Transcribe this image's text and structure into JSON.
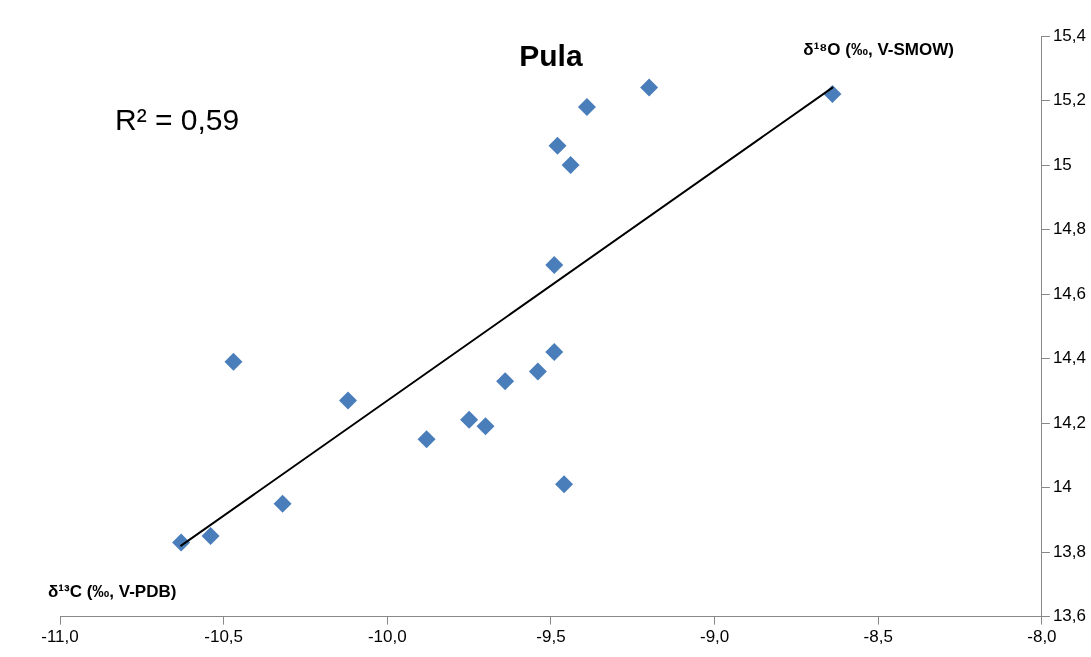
{
  "chart_data": {
    "type": "scatter",
    "title": "Pula",
    "xlabel": "δ¹³C (‰, V-PDB)",
    "ylabel": "δ¹⁸O (‰, V-SMOW)",
    "annotations": [
      "R² = 0,59"
    ],
    "xlim": [
      -11.0,
      -8.0
    ],
    "xticks": [
      {
        "value": -11.0,
        "label": "-11,0"
      },
      {
        "value": -10.5,
        "label": "-10,5"
      },
      {
        "value": -10.0,
        "label": "-10,0"
      },
      {
        "value": -9.5,
        "label": "-9,5"
      },
      {
        "value": -9.0,
        "label": "-9,0"
      },
      {
        "value": -8.5,
        "label": "-8,5"
      },
      {
        "value": -8.0,
        "label": "-8,0"
      }
    ],
    "ylim": [
      13.6,
      15.4
    ],
    "yticks": [
      {
        "value": 13.6,
        "label": "13,6"
      },
      {
        "value": 13.8,
        "label": "13,8"
      },
      14,
      {
        "value": 14.2,
        "label": "14,2"
      },
      {
        "value": 14.4,
        "label": "14,4"
      },
      {
        "value": 14.6,
        "label": "14,6"
      },
      {
        "value": 14.8,
        "label": "14,8"
      },
      15,
      {
        "value": 15.2,
        "label": "15,2"
      },
      {
        "value": 15.4,
        "label": "15,4"
      }
    ],
    "grid": false,
    "legend": false,
    "marker": "diamond",
    "series": [
      {
        "color": "#4a7ebb",
        "x": [
          -10.63,
          -10.54,
          -10.32,
          -10.47,
          -10.12,
          -9.88,
          -9.75,
          -9.7,
          -9.64,
          -9.54,
          -9.49,
          -9.46,
          -9.49,
          -9.48,
          -9.44,
          -9.39,
          -9.2,
          -8.64
        ],
        "values": [
          13.83,
          13.85,
          13.95,
          14.39,
          14.27,
          14.15,
          14.21,
          14.19,
          14.33,
          14.36,
          14.42,
          14.01,
          14.69,
          15.06,
          15.0,
          15.18,
          15.24,
          15.22
        ]
      },
      {
        "type": "line",
        "color": "#000000",
        "marker": "none",
        "line_style": "solid",
        "x": [
          -10.63,
          -8.64
        ],
        "values": [
          13.82,
          15.24
        ]
      }
    ]
  }
}
